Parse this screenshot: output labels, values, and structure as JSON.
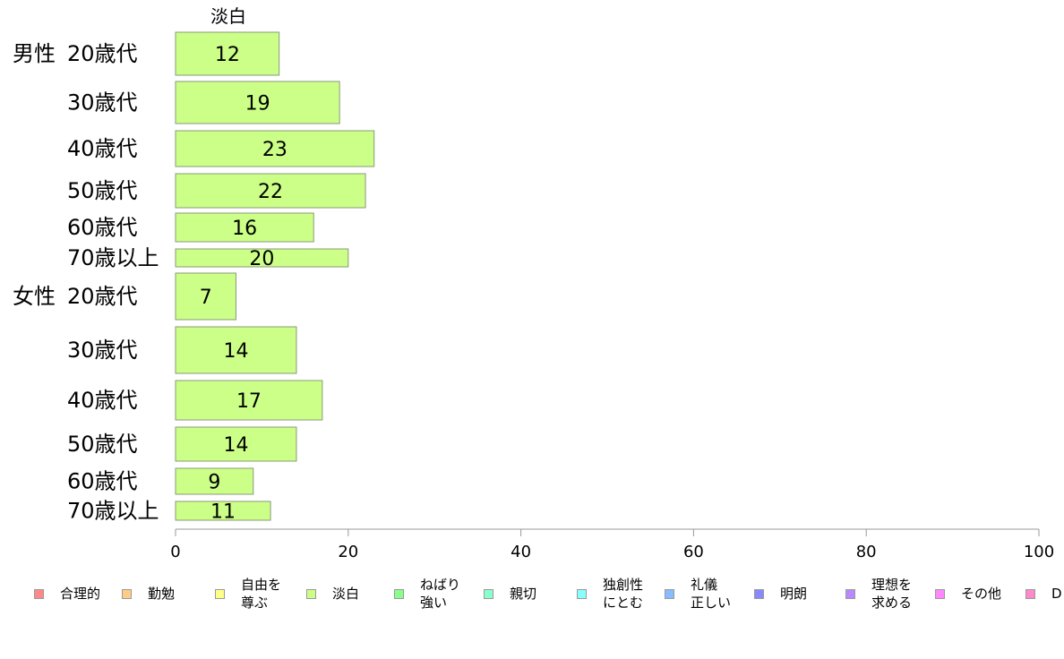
{
  "chart_data": {
    "type": "bar",
    "orientation": "horizontal",
    "stacked": true,
    "series_label_on_top": "淡白",
    "groups": [
      {
        "label": "男性",
        "categories": [
          "20歳代",
          "30歳代",
          "40歳代",
          "50歳代",
          "60歳代",
          "70歳以上"
        ]
      },
      {
        "label": "女性",
        "categories": [
          "20歳代",
          "30歳代",
          "40歳代",
          "50歳代",
          "60歳代",
          "70歳以上"
        ]
      }
    ],
    "series": [
      {
        "name": "淡白",
        "color": "#ccff88",
        "values": [
          12,
          19,
          23,
          22,
          16,
          20,
          7,
          14,
          17,
          14,
          9,
          11
        ]
      }
    ],
    "xlim": [
      0,
      100
    ],
    "xticks": [
      "0",
      "20",
      "40",
      "60",
      "80",
      "100"
    ],
    "grid": false,
    "legend_position": "bottom",
    "legend": [
      {
        "label": "合理的",
        "color": "#ff8888"
      },
      {
        "label": "勤勉",
        "color": "#ffcc88"
      },
      {
        "label": "自由を\n尊ぶ",
        "color": "#ffff88"
      },
      {
        "label": "淡白",
        "color": "#ccff88"
      },
      {
        "label": "ねばり\n強い",
        "color": "#88ff88"
      },
      {
        "label": "親切",
        "color": "#88ffcc"
      },
      {
        "label": "独創性\nにとむ",
        "color": "#88ffff"
      },
      {
        "label": "礼儀\n正しい",
        "color": "#88bbff"
      },
      {
        "label": "明朗",
        "color": "#8888ff"
      },
      {
        "label": "理想を\n求める",
        "color": "#bb88ff"
      },
      {
        "label": "その他",
        "color": "#ff88ff"
      },
      {
        "label": "D",
        "color": "#ff88cc"
      }
    ]
  }
}
